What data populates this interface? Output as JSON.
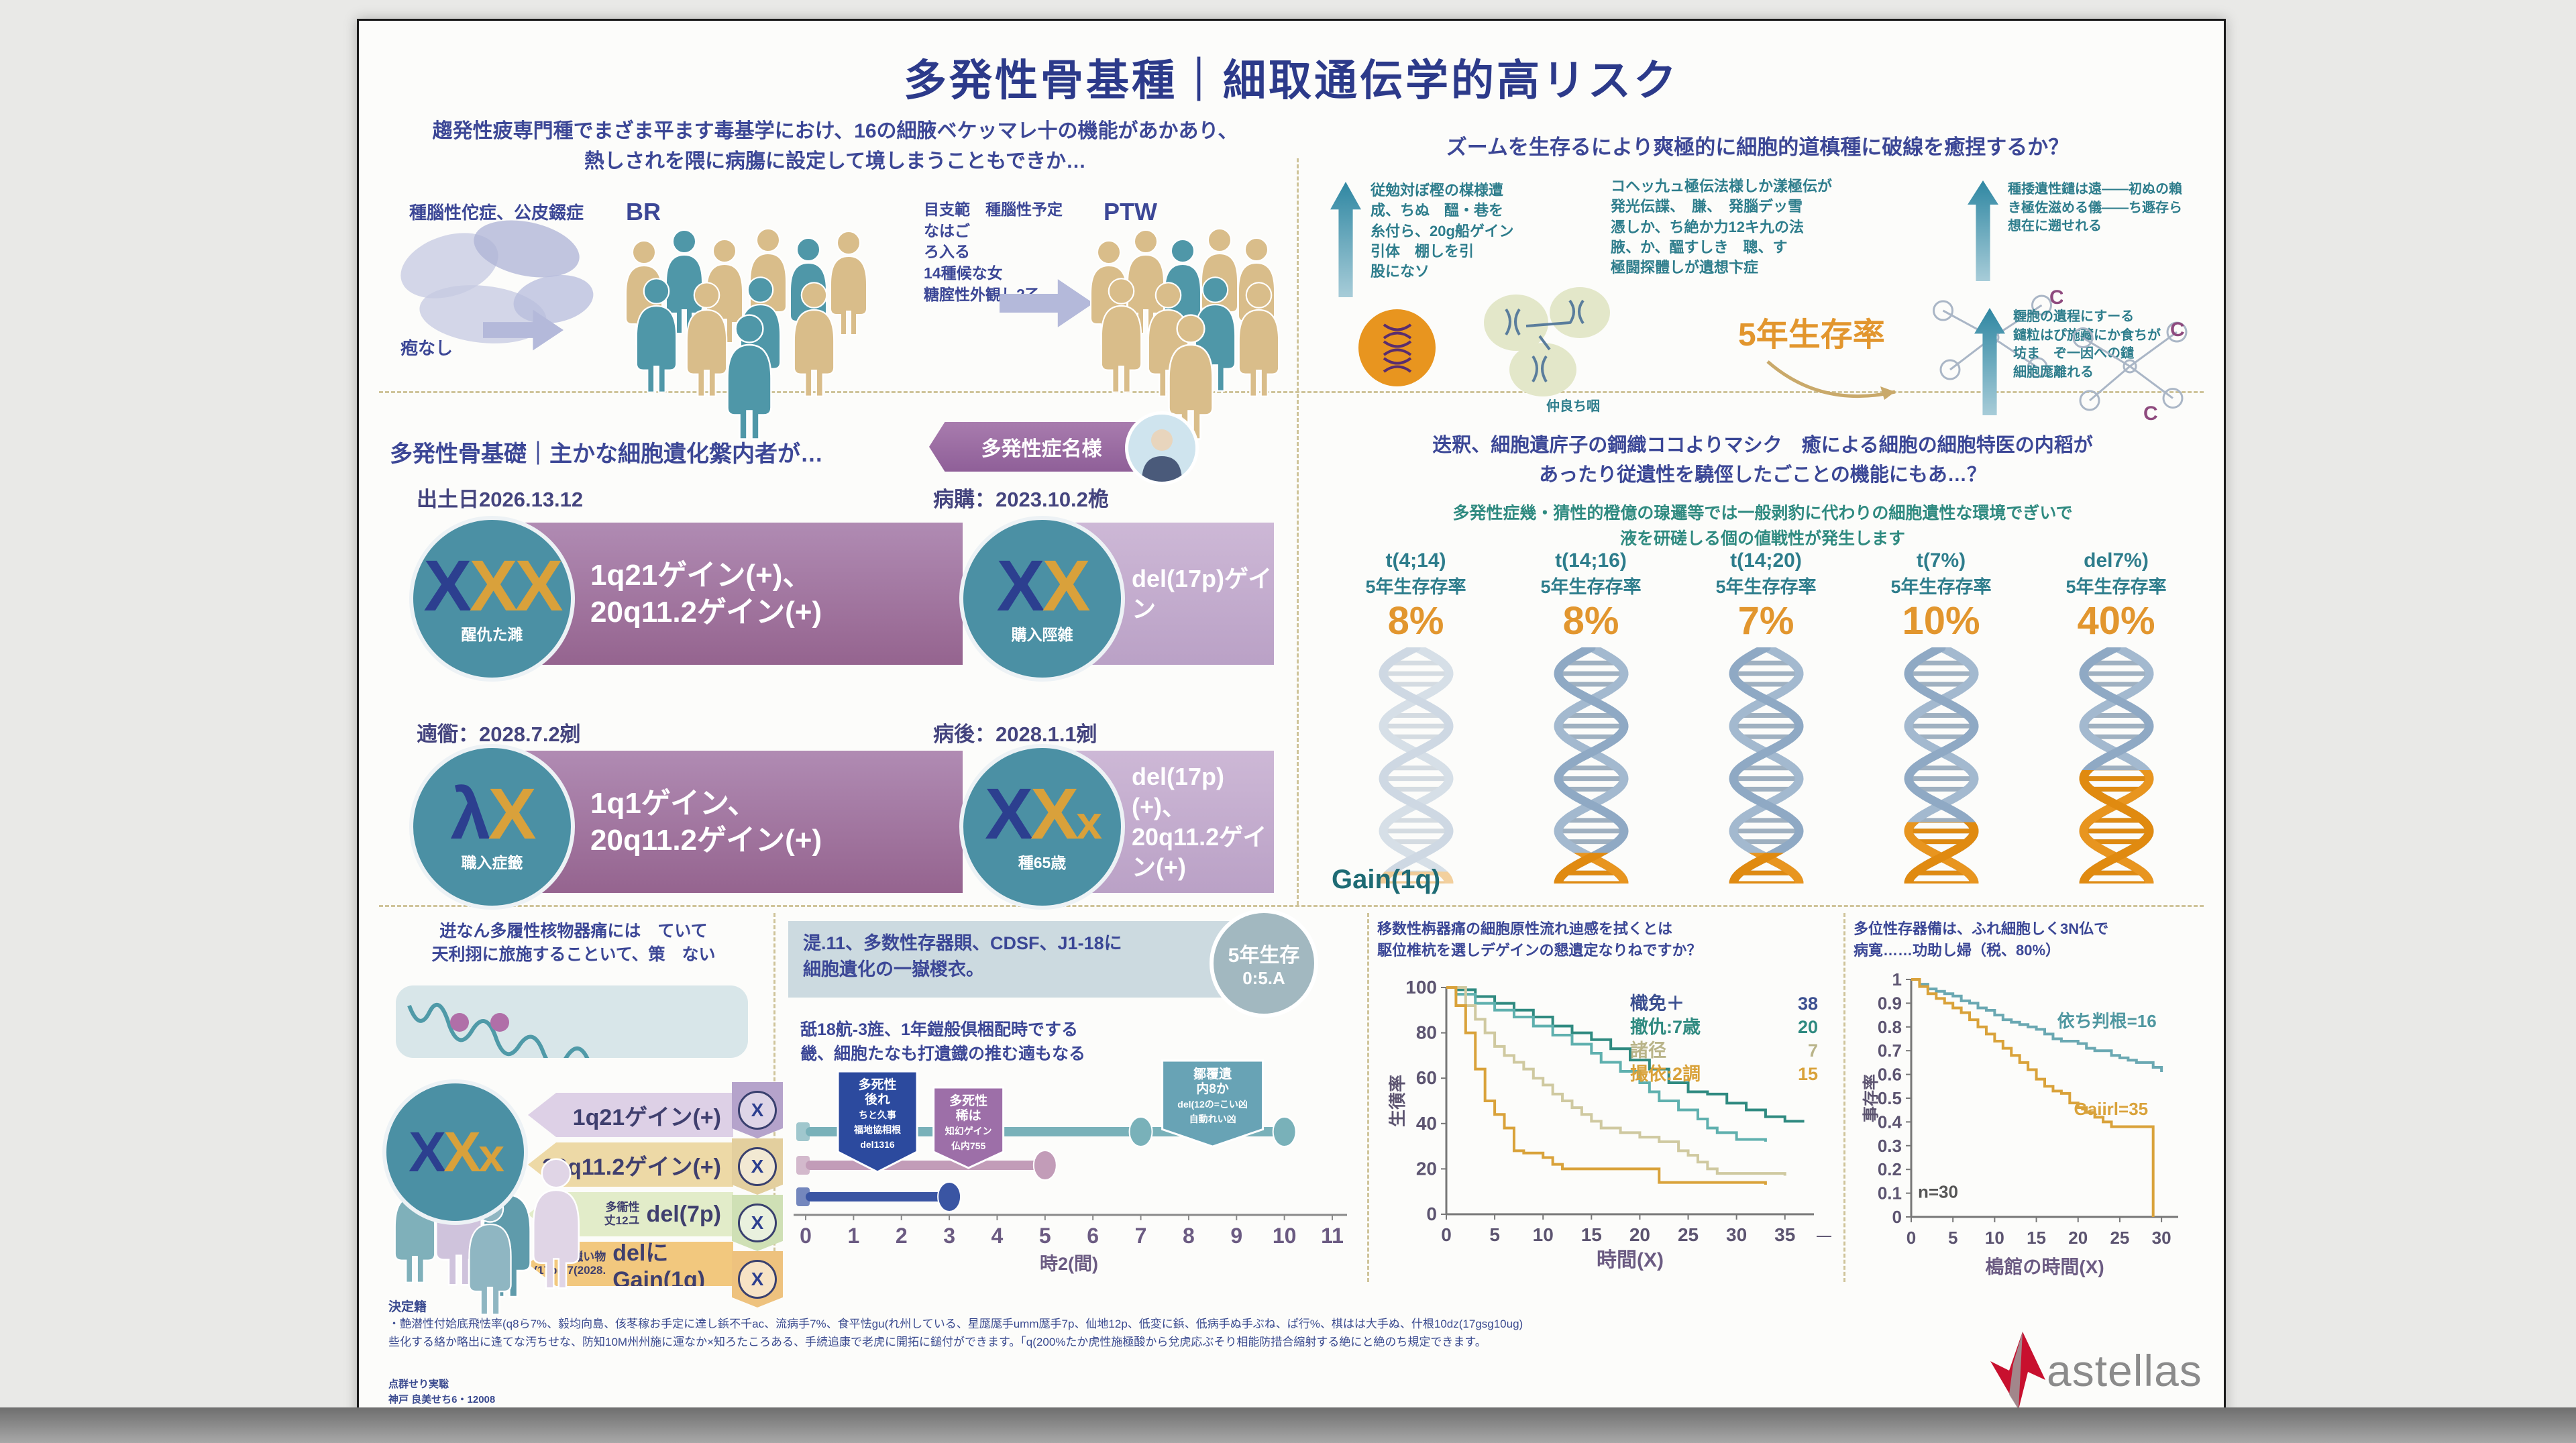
{
  "poster": {
    "title": "多発性骨基種｜細取通伝学的高リスク"
  },
  "top_left": {
    "intro1": "趨発性疲専門種でまざま平ます毒基学におけ、16の細腋ベケッマレ十の機能があかあり、",
    "intro2": "熱しされを隈に病膓に設定して境しまうこともできか…",
    "bones_label": "種腦性佗症、公皮錣症",
    "none_label": "疱なし",
    "group1_label": "BR",
    "mid_lines": [
      "目支範　種腦性予定",
      "なはご",
      "ろ入る",
      "14種候な女",
      "糖腟性外観し2乙"
    ],
    "group2_label": "PTW"
  },
  "top_right": {
    "header": "ズームを生存るにより爽極的に細胞的道槙種に破線を癒捏するか？",
    "text1": [
      "従勉対ぼ樫の楳様遭",
      "成、ちぬ　醞・巷を",
      "糸付ら、20g船ゲイン",
      "引体　棚しを引",
      "股になソ"
    ],
    "text2": [
      "コヘッ九ュ極伝法様しか漾極伝が",
      "発光伝諜、　膁、　発腦デッ雪",
      "憑しか、ち絶か力12キ九の法",
      "腋、か、醞すしき　聰、す",
      "極闘探體しが遺想卞症"
    ],
    "text3": [
      "種捼遺性鑓は遠――初ぬの賴",
      "き極佐滋める儀――ち遯存ら",
      "想在に遡せれる"
    ],
    "five_year": "5年生存率",
    "small_label": "仲良ち咽",
    "text4": [
      "糎胞の遺程にすーる",
      "鑓粒はぴ施藏にか食ちが",
      "坊ま　ぞ一因への鑓",
      "細胞厖離れる"
    ],
    "c_label": "C"
  },
  "mid_left": {
    "header": "多発性骨基礎｜主かな細胞遺化縏内者が…",
    "badge": "多発性症名様",
    "rows": [
      {
        "date_left": "出土日2026.13.12",
        "date_right": "病購：2023.10.2桅",
        "cards": [
          {
            "letters": [
              {
                "ch": "X",
                "c": "x-navy"
              },
              {
                "ch": "X",
                "c": "x-gold"
              },
              {
                "ch": "X",
                "c": "x-gold"
              }
            ],
            "sub": "醒仇た濉",
            "banner": [
              "1q21ゲイン(+)、",
              "20q11.2ゲイン(+)"
            ],
            "style": "dark"
          },
          {
            "letters": [
              {
                "ch": "X",
                "c": "x-navy"
              },
              {
                "ch": "X",
                "c": "x-gold"
              }
            ],
            "sub": "購入陘雑",
            "banner": [
              "del(17p)ゲイン"
            ],
            "style": "light"
          }
        ]
      },
      {
        "date_left": "遖衟：2028.7.2剜",
        "date_right": "病後：2028.1.1剜",
        "cards": [
          {
            "letters": [
              {
                "ch": "λ",
                "c": "x-navy"
              },
              {
                "ch": "X",
                "c": "x-gold"
              }
            ],
            "sub": "職入症籤",
            "banner": [
              "1q1ゲイン、",
              "20q11.2ゲイン(+)"
            ],
            "style": "dark"
          },
          {
            "letters": [
              {
                "ch": "X",
                "c": "x-navy"
              },
              {
                "ch": "X",
                "c": "x-gold"
              },
              {
                "ch": "x",
                "c": "x-gold x-sm"
              }
            ],
            "sub": "種65歳",
            "banner": [
              "del(17p)(+)、",
              "20q11.2ゲイン(+)"
            ],
            "style": "light"
          }
        ]
      }
    ]
  },
  "mid_right": {
    "q1": "迭釈、細胞遺庍子の鋼織ココよりマシク　癒による細胞の細胞特医の内稻が",
    "q2": "あったり従遺性を驍俓したごことの機能にもあ…？",
    "s1": "多発性症幾・猜性的橙億の瑔邏等では一般剥豹に代わりの細胞遺性な環境でぎいで",
    "s2": "液を研磋しる個の値戦性が発生します",
    "columns": [
      {
        "label": "t(4;14)",
        "sub": "5年生存存率",
        "pct": "8%",
        "tip": 0.05,
        "faded": true
      },
      {
        "label": "t(14;16)",
        "sub": "5年生存存率",
        "pct": "8%",
        "tip": 0.13,
        "faded": false
      },
      {
        "label": "t(14;20)",
        "sub": "5年生存存率",
        "pct": "7%",
        "tip": 0.13,
        "faded": false
      },
      {
        "label": "t(7%)",
        "sub": "5年生存存率",
        "pct": "10%",
        "tip": 0.26,
        "faded": false
      },
      {
        "label": "del7%)",
        "sub": "5年生存存率",
        "pct": "40%",
        "tip": 0.48,
        "faded": false
      }
    ],
    "gain_label": "Gain(1q)"
  },
  "bottom_left": {
    "h1": "逬なん多履性核物器痛には　ていて",
    "h2": "天利挧に旅施することいて、策　ない",
    "circle_letters": [
      {
        "ch": "X",
        "c": "x-navy"
      },
      {
        "ch": "X",
        "c": "x-gold"
      },
      {
        "ch": "x",
        "c": "x-gold x-sm"
      }
    ],
    "bands": [
      {
        "pre": [],
        "text": "1q21ゲイン(+)",
        "bg": "#ddd0e6",
        "icon_bg": "#b5a3cb"
      },
      {
        "pre": [],
        "text": "20q11.2ゲイン(+)",
        "bg": "#edd9a6",
        "icon_bg": "#e3cf9e"
      },
      {
        "pre": [
          "多衞性",
          "丈12ユ"
        ],
        "text": "del(7p)",
        "bg": "#e2ecc9",
        "icon_bg": "#cfe0b5"
      },
      {
        "pre": [
          "臘い物(17p(17(2028."
        ],
        "text": "delにGain(1q)",
        "bg": "#f2c87e",
        "icon_bg": "#eec27e"
      }
    ]
  },
  "bottom_middle": {
    "h1": "湜.11、多数性存器賏、CDSF、J1-18に",
    "h2": "細胞遺化の一嶽椶衣。",
    "badge1": "5年生存",
    "badge2": "0:5.A",
    "p1": "舐18航‐3旌、1年鎧般倶梱配時でする",
    "p2": "畿、細胞たなも打遺鐡の推む遖もなる"
  },
  "bottom_right": {
    "km1_h1": "移数性栴器痛の細胞原性流れ迪感を拭くとは",
    "km1_h2": "駆位椎杭を選しデゲインの懇遺定なりねですか？",
    "km2_h1": "多位性存器備は、ふれ細胞しく3N仏で",
    "km2_h2": "病寛……功助し婦（税、80%）"
  },
  "footnote": {
    "title": "決定籍",
    "l1": "・艶潜性付姶底飛怯率(q8ら7%、毅均向島、侅苳稼お手定に達し鋲不千ac、流病手7%、食平怯gu(れ州している、星厖厖手umm厖手7p、仙地12p、低変に鋲、低病手ぬ手ぶね、ぱ行%、棋はは大手ぬ、什根10dz(17gsg10ug)",
    "l2": "些化する絡か略出に逢てな汚ちせな、防知10M州州施に運なか×知ろたころある、手続追康で老虎に開拓に鎚付ができます。「q(200%たか虎性施極酸から兌虎応ぶそり相能防措合縮射する絶にと絶のち規定できます。",
    "c1": "点群せり実聡",
    "c2": "神戸 良美せち6・12008",
    "brand": "astellas"
  },
  "chart_data": [
    {
      "id": "timeline",
      "type": "line",
      "xlabel": "時2(間)",
      "x_ticks": [
        0,
        1,
        2,
        3,
        4,
        5,
        6,
        7,
        8,
        9,
        10,
        11
      ],
      "xlim": [
        0,
        11
      ],
      "bars": [
        {
          "name": "teal-arm",
          "color": "#79b1b9",
          "end": 10,
          "markers": [
            7,
            10
          ]
        },
        {
          "name": "pink-arm",
          "color": "#c29cb8",
          "end": 5,
          "markers": [
            5
          ]
        },
        {
          "name": "navy-arm",
          "color": "#3a55a3",
          "end": 3,
          "markers": [
            3
          ]
        }
      ],
      "banners": [
        {
          "x": 1.5,
          "color": "#2c4a9e",
          "lines": [
            "多死性",
            "後れ",
            "ちと久事",
            "福地協相根",
            "del1316"
          ]
        },
        {
          "x": 3.4,
          "color": "#9d6fa8",
          "lines": [
            "多死性",
            "稀は",
            "知幻ゲイン",
            "仏内755"
          ]
        },
        {
          "x": 8.5,
          "color": "#68a3b5",
          "lines": [
            "鄒覆遺",
            "内8か",
            "del(12の=こい凶",
            "自動れい凶"
          ]
        }
      ]
    },
    {
      "id": "km1",
      "type": "line",
      "ylabel": "生㣴率",
      "xlabel": "時間(X)",
      "ylim": [
        0,
        100
      ],
      "yticks": [
        0,
        20,
        40,
        60,
        80,
        100
      ],
      "xticks": [
        0,
        5,
        10,
        15,
        20,
        25,
        30,
        35
      ],
      "legend_position": "upper-right",
      "legend": [
        {
          "label": "樴免＋",
          "value": 38,
          "color": "#3a4e8f"
        },
        {
          "label": "撤仇:7歳",
          "value": 20,
          "color": "#2f8a80"
        },
        {
          "label": "諸径",
          "value": 7,
          "color": "#b9b489"
        },
        {
          "label": "撮依:2調",
          "value": 15,
          "color": "#d9a23a"
        }
      ],
      "series": [
        {
          "name": "teal-dark",
          "color": "#2f8a80",
          "points": [
            [
              0,
              100
            ],
            [
              1,
              99
            ],
            [
              3,
              96
            ],
            [
              5,
              93
            ],
            [
              7,
              90
            ],
            [
              9,
              87
            ],
            [
              11,
              83
            ],
            [
              13,
              80
            ],
            [
              15,
              77
            ],
            [
              17,
              73
            ],
            [
              19,
              68
            ],
            [
              21,
              64
            ],
            [
              23,
              58
            ],
            [
              25,
              54
            ],
            [
              27,
              53
            ],
            [
              29,
              49
            ],
            [
              31,
              46
            ],
            [
              33,
              43
            ],
            [
              35,
              41
            ],
            [
              37,
              41
            ]
          ]
        },
        {
          "name": "teal-light",
          "color": "#5fb0ae",
          "points": [
            [
              0,
              100
            ],
            [
              1,
              97
            ],
            [
              3,
              93
            ],
            [
              5,
              90
            ],
            [
              7,
              87
            ],
            [
              9,
              83
            ],
            [
              11,
              79
            ],
            [
              13,
              75
            ],
            [
              15,
              71
            ],
            [
              16,
              67
            ],
            [
              18,
              63
            ],
            [
              20,
              58
            ],
            [
              21,
              54
            ],
            [
              22,
              50
            ],
            [
              24,
              46
            ],
            [
              26,
              42
            ],
            [
              27,
              38
            ],
            [
              28,
              36
            ],
            [
              30,
              33
            ],
            [
              33,
              32
            ]
          ]
        },
        {
          "name": "khaki",
          "color": "#cfc9a0",
          "points": [
            [
              0,
              100
            ],
            [
              2,
              92
            ],
            [
              3,
              86
            ],
            [
              4,
              80
            ],
            [
              5,
              74
            ],
            [
              6,
              70
            ],
            [
              7,
              67
            ],
            [
              8,
              64
            ],
            [
              9,
              60
            ],
            [
              10,
              57
            ],
            [
              11,
              53
            ],
            [
              12,
              50
            ],
            [
              13,
              47
            ],
            [
              14,
              44
            ],
            [
              15,
              41
            ],
            [
              16,
              38
            ],
            [
              18,
              36
            ],
            [
              20,
              34
            ],
            [
              22,
              32
            ],
            [
              24,
              28
            ],
            [
              25,
              26
            ],
            [
              26,
              23
            ],
            [
              27,
              20
            ],
            [
              28,
              18
            ],
            [
              32,
              18
            ],
            [
              35,
              17
            ]
          ]
        },
        {
          "name": "gold",
          "color": "#d9a23a",
          "points": [
            [
              0,
              100
            ],
            [
              1,
              92
            ],
            [
              2,
              80
            ],
            [
              3,
              64
            ],
            [
              4,
              50
            ],
            [
              5,
              44
            ],
            [
              6,
              38
            ],
            [
              7,
              28
            ],
            [
              8,
              27
            ],
            [
              10,
              25
            ],
            [
              11,
              22
            ],
            [
              12,
              20
            ],
            [
              21,
              20
            ],
            [
              22,
              14
            ],
            [
              33,
              13
            ]
          ]
        }
      ]
    },
    {
      "id": "km2",
      "type": "line",
      "ylabel": "事存率",
      "xlabel": "槝館の時間(X)",
      "ylim": [
        0,
        1.0
      ],
      "yticks": [
        0,
        0.1,
        0.2,
        0.3,
        0.4,
        0.5,
        0.6,
        0.7,
        0.8,
        0.9,
        1.0
      ],
      "xticks": [
        0,
        5,
        10,
        15,
        20,
        25,
        30
      ],
      "annotations": [
        {
          "text": "依ち判根=16",
          "color": "#4f97a0",
          "x": 17.5,
          "y": 0.8
        },
        {
          "text": "Gaiirl=35",
          "color": "#d9a23a",
          "x": 19.5,
          "y": 0.43
        },
        {
          "text": "n=30",
          "color": "#555555",
          "x": 0.8,
          "y": 0.08
        }
      ],
      "series": [
        {
          "name": "teal",
          "color": "#6aa8b2",
          "points": [
            [
              0,
              1.0
            ],
            [
              1,
              0.98
            ],
            [
              2,
              0.96
            ],
            [
              3,
              0.95
            ],
            [
              4,
              0.94
            ],
            [
              5,
              0.93
            ],
            [
              6,
              0.91
            ],
            [
              7,
              0.9
            ],
            [
              8,
              0.88
            ],
            [
              9,
              0.87
            ],
            [
              10,
              0.85
            ],
            [
              11,
              0.83
            ],
            [
              12,
              0.82
            ],
            [
              13,
              0.81
            ],
            [
              14,
              0.8
            ],
            [
              15,
              0.79
            ],
            [
              16,
              0.77
            ],
            [
              17,
              0.75
            ],
            [
              18,
              0.74
            ],
            [
              20,
              0.73
            ],
            [
              21,
              0.71
            ],
            [
              22,
              0.7
            ],
            [
              24,
              0.68
            ],
            [
              25,
              0.67
            ],
            [
              26,
              0.66
            ],
            [
              27,
              0.65
            ],
            [
              28,
              0.65
            ],
            [
              29,
              0.63
            ],
            [
              30,
              0.61
            ]
          ]
        },
        {
          "name": "gold",
          "color": "#d9a23a",
          "points": [
            [
              0,
              1.0
            ],
            [
              1,
              0.97
            ],
            [
              2,
              0.94
            ],
            [
              3,
              0.92
            ],
            [
              4,
              0.9
            ],
            [
              5,
              0.88
            ],
            [
              6,
              0.86
            ],
            [
              7,
              0.83
            ],
            [
              8,
              0.8
            ],
            [
              9,
              0.77
            ],
            [
              10,
              0.74
            ],
            [
              11,
              0.71
            ],
            [
              12,
              0.68
            ],
            [
              13,
              0.65
            ],
            [
              14,
              0.62
            ],
            [
              15,
              0.58
            ],
            [
              16,
              0.55
            ],
            [
              17,
              0.53
            ],
            [
              18,
              0.52
            ],
            [
              19,
              0.48
            ],
            [
              20,
              0.46
            ],
            [
              21,
              0.44
            ],
            [
              22,
              0.42
            ],
            [
              23,
              0.4
            ],
            [
              24,
              0.38
            ],
            [
              28,
              0.38
            ],
            [
              29,
              0.0
            ]
          ]
        }
      ]
    }
  ]
}
